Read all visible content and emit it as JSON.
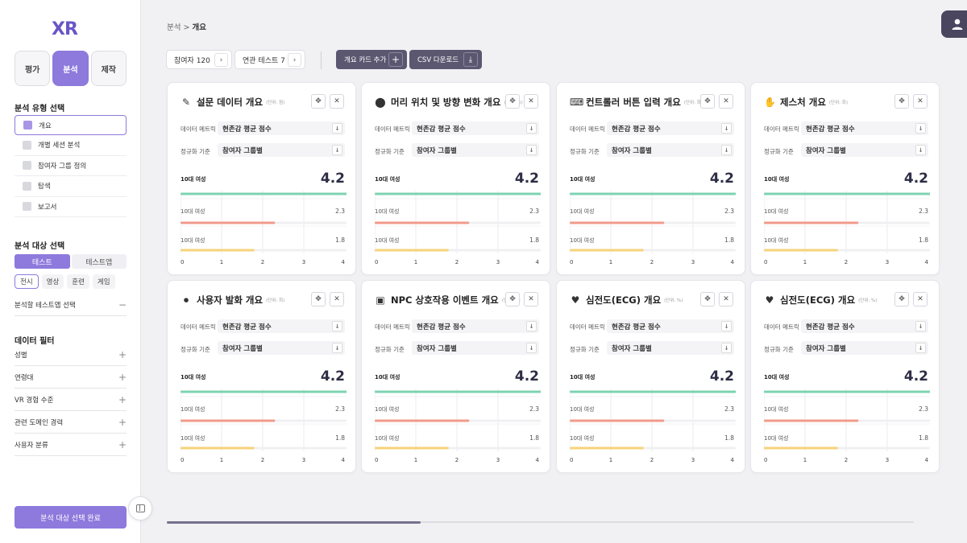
{
  "app": {
    "logo": "XR"
  },
  "sidebar": {
    "mode_tabs": [
      {
        "label": "평가",
        "active": false
      },
      {
        "label": "분석",
        "active": true
      },
      {
        "label": "제작",
        "active": false
      }
    ],
    "analysis_type_title": "분석 유형 선택",
    "analysis_types": [
      {
        "label": "개요",
        "active": true
      },
      {
        "label": "개별 세션 분석",
        "active": false
      },
      {
        "label": "참여자 그룹 정의",
        "active": false
      },
      {
        "label": "탐색",
        "active": false
      },
      {
        "label": "보고서",
        "active": false
      }
    ],
    "target_title": "분석 대상 선택",
    "target_segments": [
      {
        "label": "테스트",
        "active": true
      },
      {
        "label": "테스트앱",
        "active": false
      }
    ],
    "target_chips": [
      {
        "label": "전시",
        "active": true
      },
      {
        "label": "영상",
        "active": false
      },
      {
        "label": "훈련",
        "active": false
      },
      {
        "label": "게임",
        "active": false
      }
    ],
    "select_test_app": {
      "label": "분석할 테스트앱 선택",
      "symbol": "−"
    },
    "filter_title": "데이터 필터",
    "filters": [
      {
        "label": "성별",
        "symbol": "+"
      },
      {
        "label": "연령대",
        "symbol": "+"
      },
      {
        "label": "VR 경험 수준",
        "symbol": "+"
      },
      {
        "label": "관련 도메인 경력",
        "symbol": "+"
      },
      {
        "label": "사용자 분류",
        "symbol": "+"
      }
    ],
    "done_button": "분석 대상 선택 완료"
  },
  "header": {
    "breadcrumb_parent": "분석",
    "breadcrumb_sep": " > ",
    "breadcrumb_current": "개요"
  },
  "toolbar": {
    "participants": "참여자 120",
    "related_tests": "연관 테스트 7",
    "chevron": "›",
    "add_card": "개요 카드 추가",
    "add_icon": "+",
    "csv_download": "CSV 다운로드",
    "download_icon": "⤓"
  },
  "card_common": {
    "metric_label": "데이터 메트릭",
    "metric_value": "현존감 평균 점수",
    "norm_label": "정규화 기준",
    "norm_value": "참여자 그룹별",
    "dropdown_icon": "↓",
    "move_icon": "✥",
    "close_icon": "✕"
  },
  "cards": [
    {
      "title": "설문 데이터 개요",
      "unit": "(단위: 점)",
      "icon": "✎"
    },
    {
      "title": "머리 위치 및 방향 변화 개요",
      "unit": "(단위: m)",
      "icon": "⬤"
    },
    {
      "title": "컨트롤러 버튼 입력 개요",
      "unit": "(단위: 회)",
      "icon": "⌨"
    },
    {
      "title": "제스처 개요",
      "unit": "(단위: 회)",
      "icon": "✋"
    },
    {
      "title": "사용자 발화 개요",
      "unit": "(단위: 회)",
      "icon": "⏺"
    },
    {
      "title": "NPC 상호작용 이벤트 개요",
      "unit": "(단위: 초)",
      "icon": "▣"
    },
    {
      "title": "심전도(ECG) 개요",
      "unit": "(단위: %)",
      "icon": "♥"
    },
    {
      "title": "심전도(ECG) 개요",
      "unit": "(단위: %)",
      "icon": "♥"
    }
  ],
  "chart_data": {
    "type": "bar",
    "orientation": "horizontal",
    "categories": [
      "10대 여성",
      "10대 여성",
      "10대 여성"
    ],
    "values": [
      4.2,
      2.3,
      1.8
    ],
    "value_labels": [
      "4.2",
      "2.3",
      "1.8"
    ],
    "bar_colors": [
      "#7dd3b0",
      "#f29a8a",
      "#f6d37a"
    ],
    "xlim": [
      0,
      4
    ],
    "xticks": [
      "0",
      "1",
      "2",
      "3",
      "4"
    ],
    "grid": true
  },
  "colors": {
    "accent": "#8e79dc",
    "dark_button": "#5b5770",
    "avatar": "#4a4660"
  }
}
